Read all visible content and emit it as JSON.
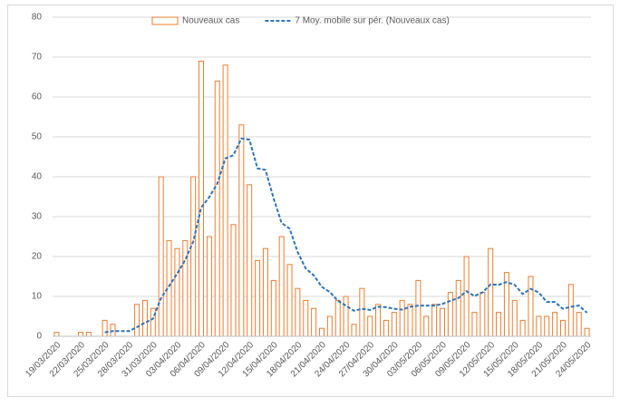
{
  "chart_data": {
    "type": "bar",
    "categories": [
      "19/03/2020",
      null,
      null,
      "22/03/2020",
      null,
      null,
      "25/03/2020",
      null,
      null,
      "28/03/2020",
      null,
      null,
      "31/03/2020",
      null,
      null,
      "03/04/2020",
      null,
      null,
      "06/04/2020",
      null,
      null,
      "09/04/2020",
      null,
      null,
      "12/04/2020",
      null,
      null,
      "15/04/2020",
      null,
      null,
      "18/04/2020",
      null,
      null,
      "21/04/2020",
      null,
      null,
      "24/04/2020",
      null,
      null,
      "27/04/2020",
      null,
      null,
      "30/04/2020",
      null,
      null,
      "03/05/2020",
      null,
      null,
      "06/05/2020",
      null,
      null,
      "09/05/2020",
      null,
      null,
      "12/05/2020",
      null,
      null,
      "15/05/2020",
      null,
      null,
      "18/05/2020",
      null,
      null,
      "21/05/2020",
      null,
      null,
      "24/05/2020"
    ],
    "series": [
      {
        "name": "Nouveaux cas",
        "type": "bar",
        "color": "#ed7d31",
        "values": [
          1,
          0,
          0,
          1,
          1,
          0,
          4,
          3,
          0,
          0,
          8,
          9,
          7,
          40,
          24,
          22,
          24,
          40,
          69,
          25,
          64,
          68,
          28,
          53,
          38,
          19,
          22,
          14,
          25,
          18,
          12,
          9,
          7,
          2,
          5,
          9,
          10,
          3,
          12,
          5,
          8,
          4,
          6,
          9,
          8,
          14,
          5,
          8,
          7,
          11,
          14,
          20,
          6,
          11,
          22,
          6,
          16,
          9,
          4,
          15,
          5,
          5,
          6,
          4,
          13,
          6,
          2
        ]
      },
      {
        "name": "7 Moy. mobile sur pér. (Nouveaux cas)",
        "type": "line",
        "dashed": true,
        "color": "#2e75b6",
        "values": [
          null,
          null,
          null,
          null,
          null,
          null,
          1.0,
          1.3,
          1.3,
          1.3,
          2.3,
          3.4,
          4.4,
          9.6,
          12.6,
          15.7,
          19.1,
          23.7,
          32.3,
          34.9,
          38.3,
          44.6,
          45.4,
          49.6,
          49.3,
          42.1,
          41.7,
          34.6,
          28.4,
          27,
          21.1,
          17,
          15.3,
          12.4,
          11.1,
          8.9,
          7.7,
          6.4,
          6.9,
          6.6,
          7.4,
          7.3,
          6.9,
          6.7,
          7.4,
          7.7,
          7.7,
          7.7,
          8.1,
          8.9,
          9.6,
          11.3,
          10.1,
          11,
          13,
          12.9,
          13.6,
          12.9,
          10.6,
          11.9,
          11,
          8.6,
          8.6,
          6.9,
          7.4,
          7.7,
          5.9
        ]
      }
    ],
    "ylim": [
      0,
      80
    ],
    "yticks": [
      0,
      10,
      20,
      30,
      40,
      50,
      60,
      70,
      80
    ],
    "grid": true,
    "legend": "top"
  }
}
